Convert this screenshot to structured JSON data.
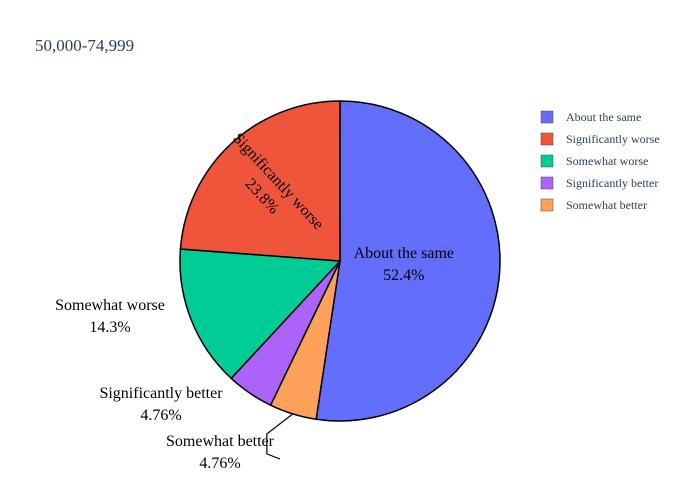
{
  "chart_data": {
    "type": "pie",
    "title": "50,000-74,999",
    "legend_position": "top-right",
    "slices": [
      {
        "label": "About the same",
        "percent_text": "52.4%",
        "value": 52.38,
        "color": "#636efa"
      },
      {
        "label": "Somewhat better",
        "percent_text": "4.76%",
        "value": 4.76,
        "color": "#ffa15a"
      },
      {
        "label": "Significantly better",
        "percent_text": "4.76%",
        "value": 4.76,
        "color": "#ab63fa"
      },
      {
        "label": "Somewhat worse",
        "percent_text": "14.3%",
        "value": 14.29,
        "color": "#00cc96"
      },
      {
        "label": "Significantly worse",
        "percent_text": "23.8%",
        "value": 23.81,
        "color": "#ef553b"
      }
    ],
    "legend_order": [
      "About the same",
      "Significantly worse",
      "Somewhat worse",
      "Significantly better",
      "Somewhat better"
    ]
  }
}
